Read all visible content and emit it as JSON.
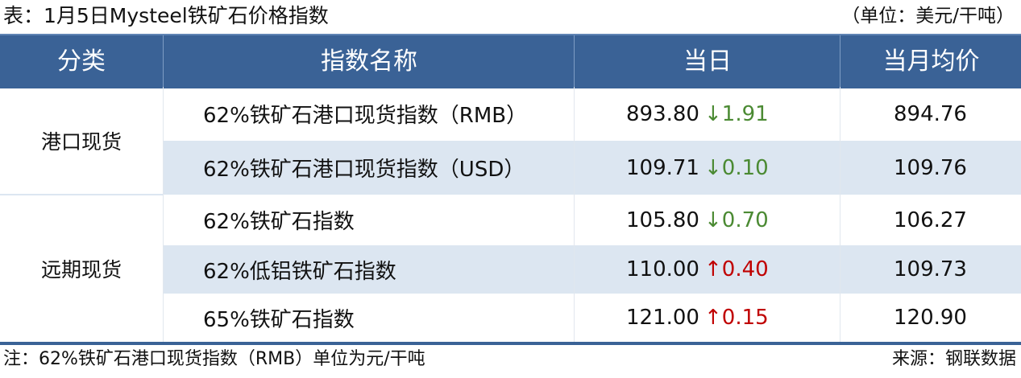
{
  "title": "表：1月5日Mysteel铁矿石价格指数",
  "unit": "（单位：美元/干吨）",
  "headers": [
    "分类",
    "指数名称",
    "当日",
    "当月均价"
  ],
  "categories": [
    "港口现货",
    "远期现货"
  ],
  "rows": [
    {
      "name": "62%铁矿石港口现货指数（RMB）",
      "value": "893.80",
      "arrow": "↓",
      "change": "1.91",
      "direction": "down",
      "avg": "894.76"
    },
    {
      "name": "62%铁矿石港口现货指数（USD）",
      "value": "109.71",
      "arrow": "↓",
      "change": "0.10",
      "direction": "down",
      "avg": "109.76"
    },
    {
      "name": "62%铁矿石指数",
      "value": "105.80",
      "arrow": "↓",
      "change": "0.70",
      "direction": "down",
      "avg": "106.27"
    },
    {
      "name": "62%低铝铁矿石指数",
      "value": "110.00",
      "arrow": "↑",
      "change": "0.40",
      "direction": "up",
      "avg": "109.73"
    },
    {
      "name": "65%铁矿石指数",
      "value": "121.00",
      "arrow": "↑",
      "change": "0.15",
      "direction": "up",
      "avg": "120.90"
    }
  ],
  "colors": {
    "header": "#3a6296",
    "stripe": "#dce6f1",
    "down": "#4b8a33",
    "up": "#c00000"
  },
  "footer": {
    "note": "注：62%铁矿石港口现货指数（RMB）单位为元/干吨",
    "source": "来源：钢联数据"
  }
}
